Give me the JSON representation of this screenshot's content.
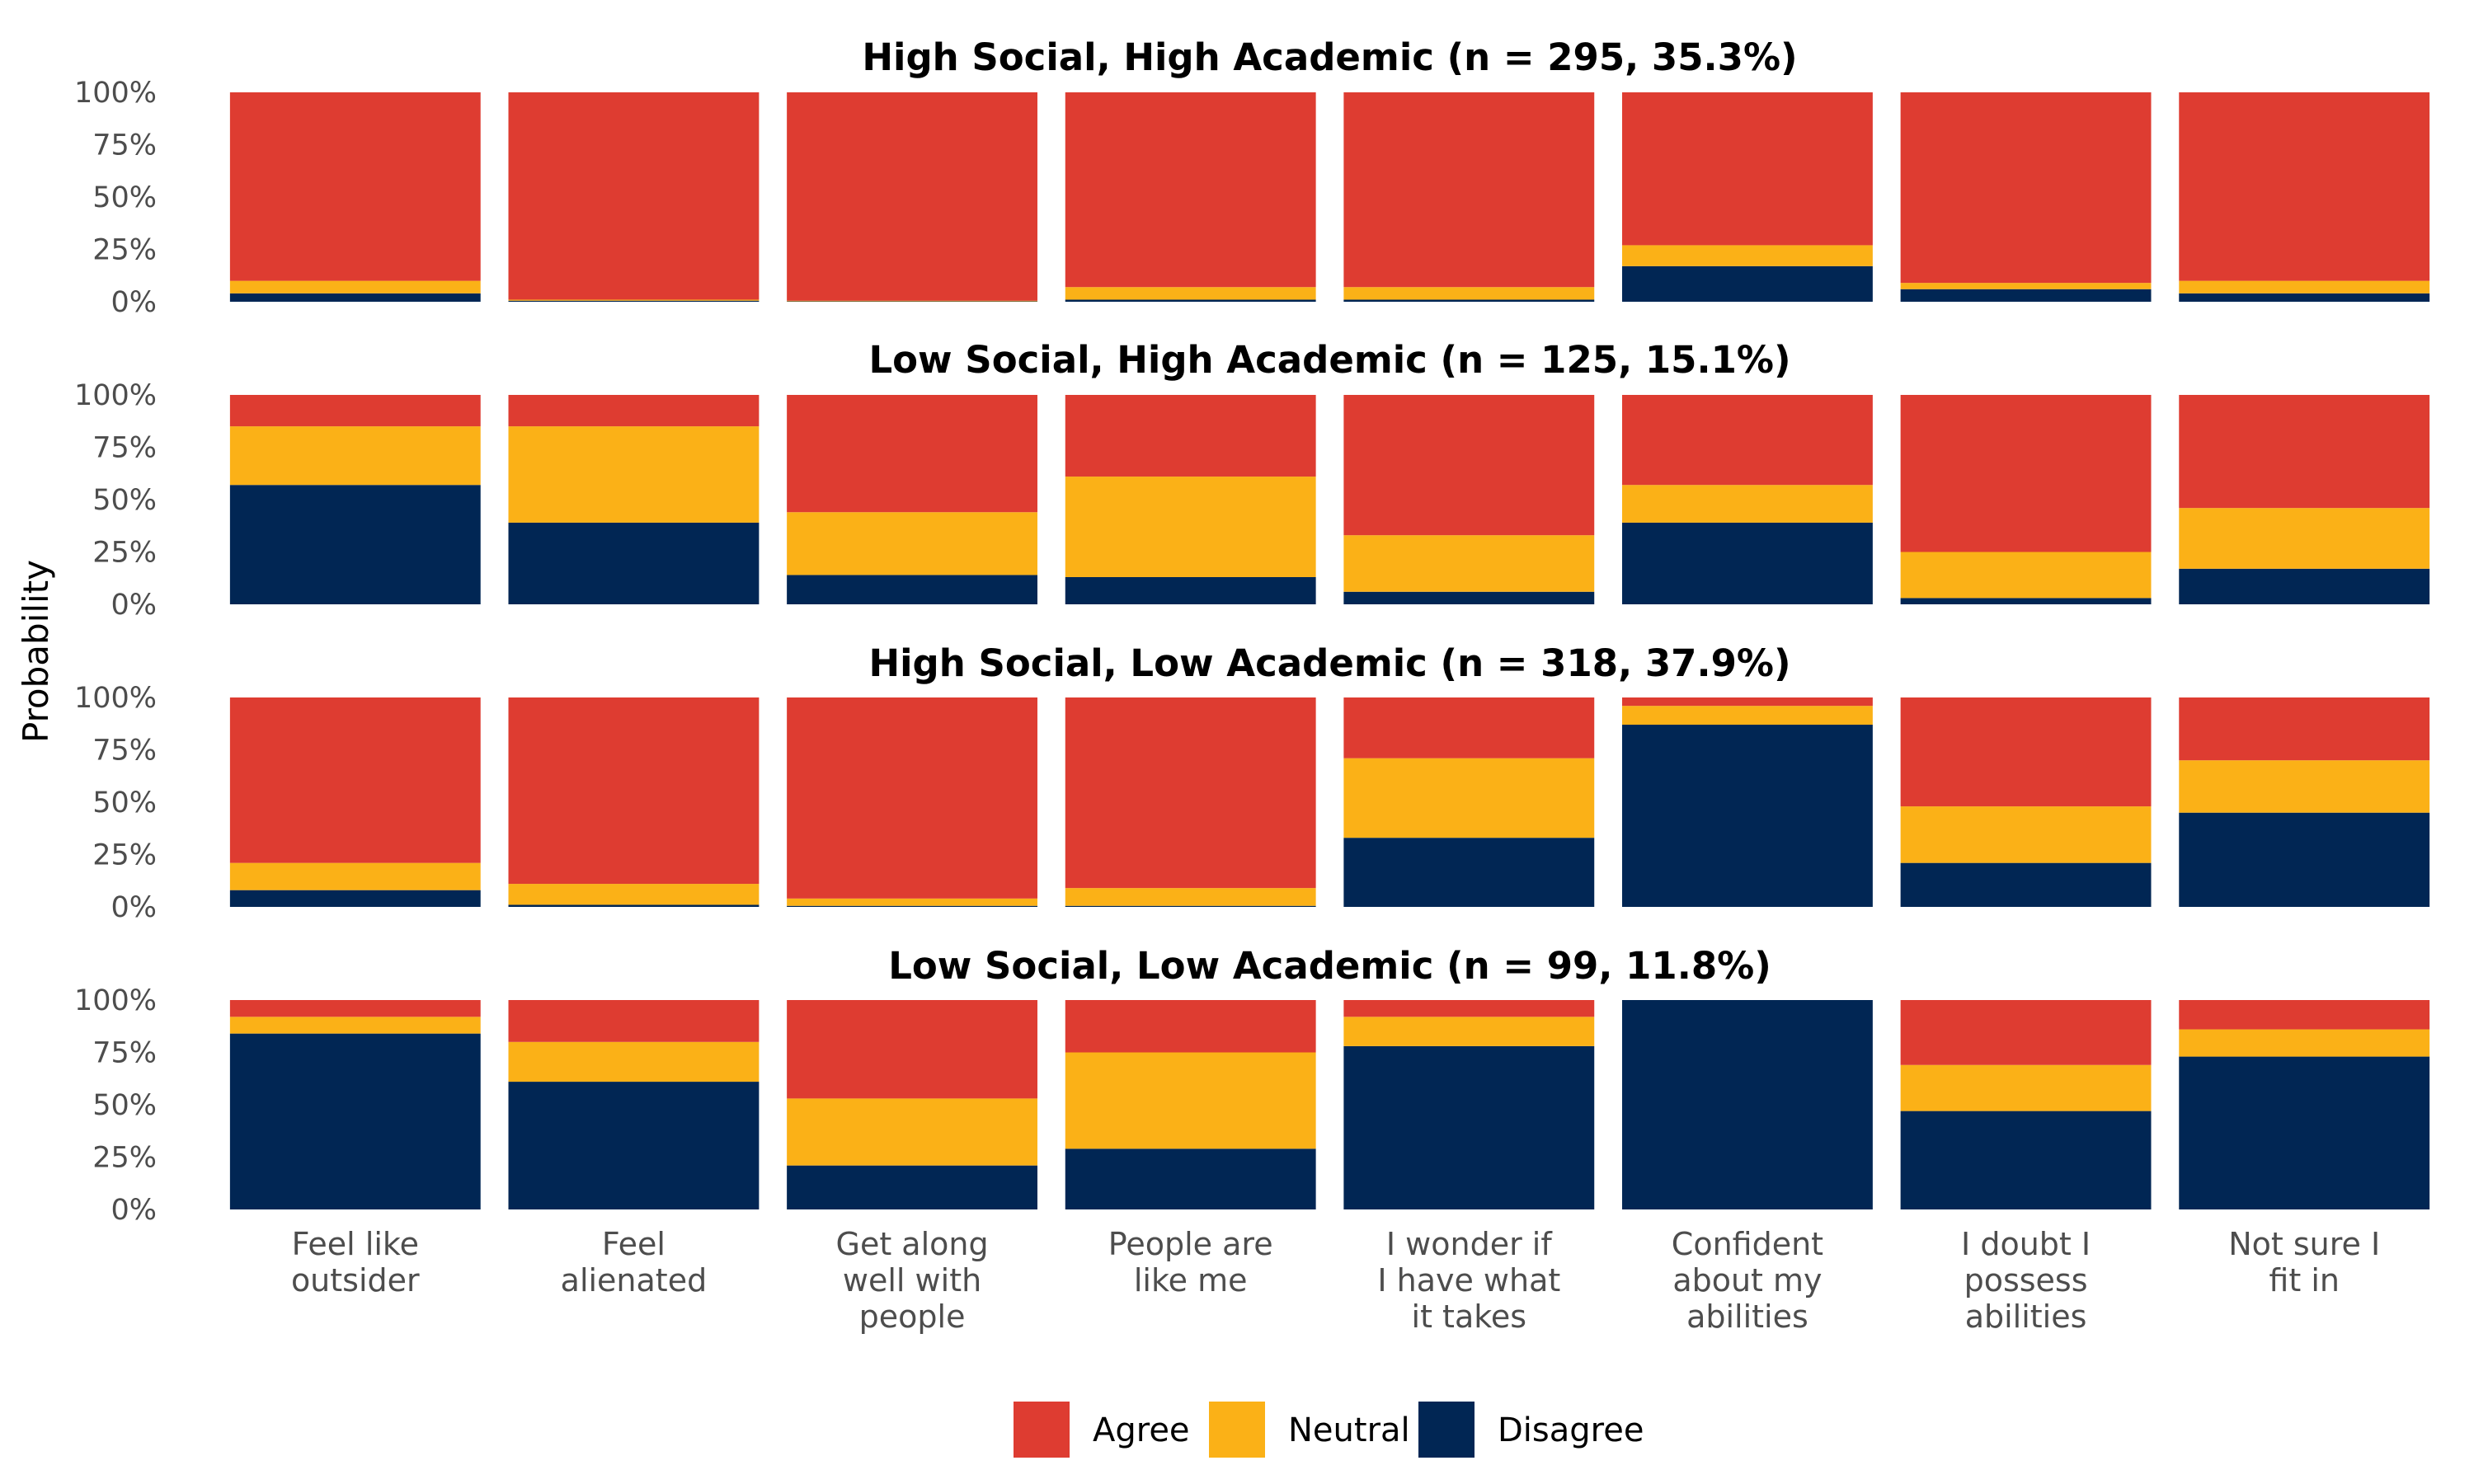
{
  "chart_data": {
    "type": "bar",
    "stacked": true,
    "ylabel": "Probability",
    "ylim": [
      0,
      1
    ],
    "yticks": [
      0,
      0.25,
      0.5,
      0.75,
      1.0
    ],
    "ytick_labels": [
      "0%",
      "25%",
      "50%",
      "75%",
      "100%"
    ],
    "categories": [
      [
        "Feel like",
        "outsider"
      ],
      [
        "Feel",
        "alienated"
      ],
      [
        "Get along",
        "well with",
        "people"
      ],
      [
        "People are",
        "like me"
      ],
      [
        "I wonder if",
        "I have what",
        "it takes"
      ],
      [
        "Confident",
        "about my",
        "abilities"
      ],
      [
        "I doubt I",
        "possess",
        "abilities"
      ],
      [
        "Not sure I",
        "fit in"
      ]
    ],
    "colors": {
      "Agree": "#de3c31",
      "Neutral": "#fbb117",
      "Disagree": "#012654"
    },
    "legend": {
      "position": "bottom",
      "entries": [
        "Agree",
        "Neutral",
        "Disagree"
      ]
    },
    "grid": false,
    "panels": [
      {
        "title": "High Social, High Academic (n = 295, 35.3%)",
        "series": [
          {
            "name": "Disagree",
            "values": [
              0.04,
              0.005,
              0.002,
              0.01,
              0.01,
              0.17,
              0.06,
              0.04
            ]
          },
          {
            "name": "Neutral",
            "values": [
              0.06,
              0.005,
              0.003,
              0.06,
              0.06,
              0.1,
              0.03,
              0.06
            ]
          },
          {
            "name": "Agree",
            "values": [
              0.9,
              0.99,
              0.995,
              0.93,
              0.93,
              0.73,
              0.91,
              0.9
            ]
          }
        ]
      },
      {
        "title": "Low Social, High Academic (n = 125, 15.1%)",
        "series": [
          {
            "name": "Disagree",
            "values": [
              0.57,
              0.39,
              0.14,
              0.13,
              0.06,
              0.39,
              0.03,
              0.17
            ]
          },
          {
            "name": "Neutral",
            "values": [
              0.28,
              0.46,
              0.3,
              0.48,
              0.27,
              0.18,
              0.22,
              0.29
            ]
          },
          {
            "name": "Agree",
            "values": [
              0.15,
              0.15,
              0.56,
              0.39,
              0.67,
              0.43,
              0.75,
              0.54
            ]
          }
        ]
      },
      {
        "title": "High Social, Low Academic (n = 318, 37.9%)",
        "series": [
          {
            "name": "Disagree",
            "values": [
              0.08,
              0.01,
              0.005,
              0.005,
              0.33,
              0.87,
              0.21,
              0.45
            ]
          },
          {
            "name": "Neutral",
            "values": [
              0.13,
              0.1,
              0.035,
              0.085,
              0.38,
              0.09,
              0.27,
              0.25
            ]
          },
          {
            "name": "Agree",
            "values": [
              0.79,
              0.89,
              0.96,
              0.91,
              0.29,
              0.04,
              0.52,
              0.3
            ]
          }
        ]
      },
      {
        "title": "Low Social, Low Academic (n = 99, 11.8%)",
        "series": [
          {
            "name": "Disagree",
            "values": [
              0.84,
              0.61,
              0.21,
              0.29,
              0.78,
              1.0,
              0.47,
              0.73
            ]
          },
          {
            "name": "Neutral",
            "values": [
              0.08,
              0.19,
              0.32,
              0.46,
              0.14,
              0.0,
              0.22,
              0.13
            ]
          },
          {
            "name": "Agree",
            "values": [
              0.08,
              0.2,
              0.47,
              0.25,
              0.08,
              0.0,
              0.31,
              0.14
            ]
          }
        ]
      }
    ]
  }
}
